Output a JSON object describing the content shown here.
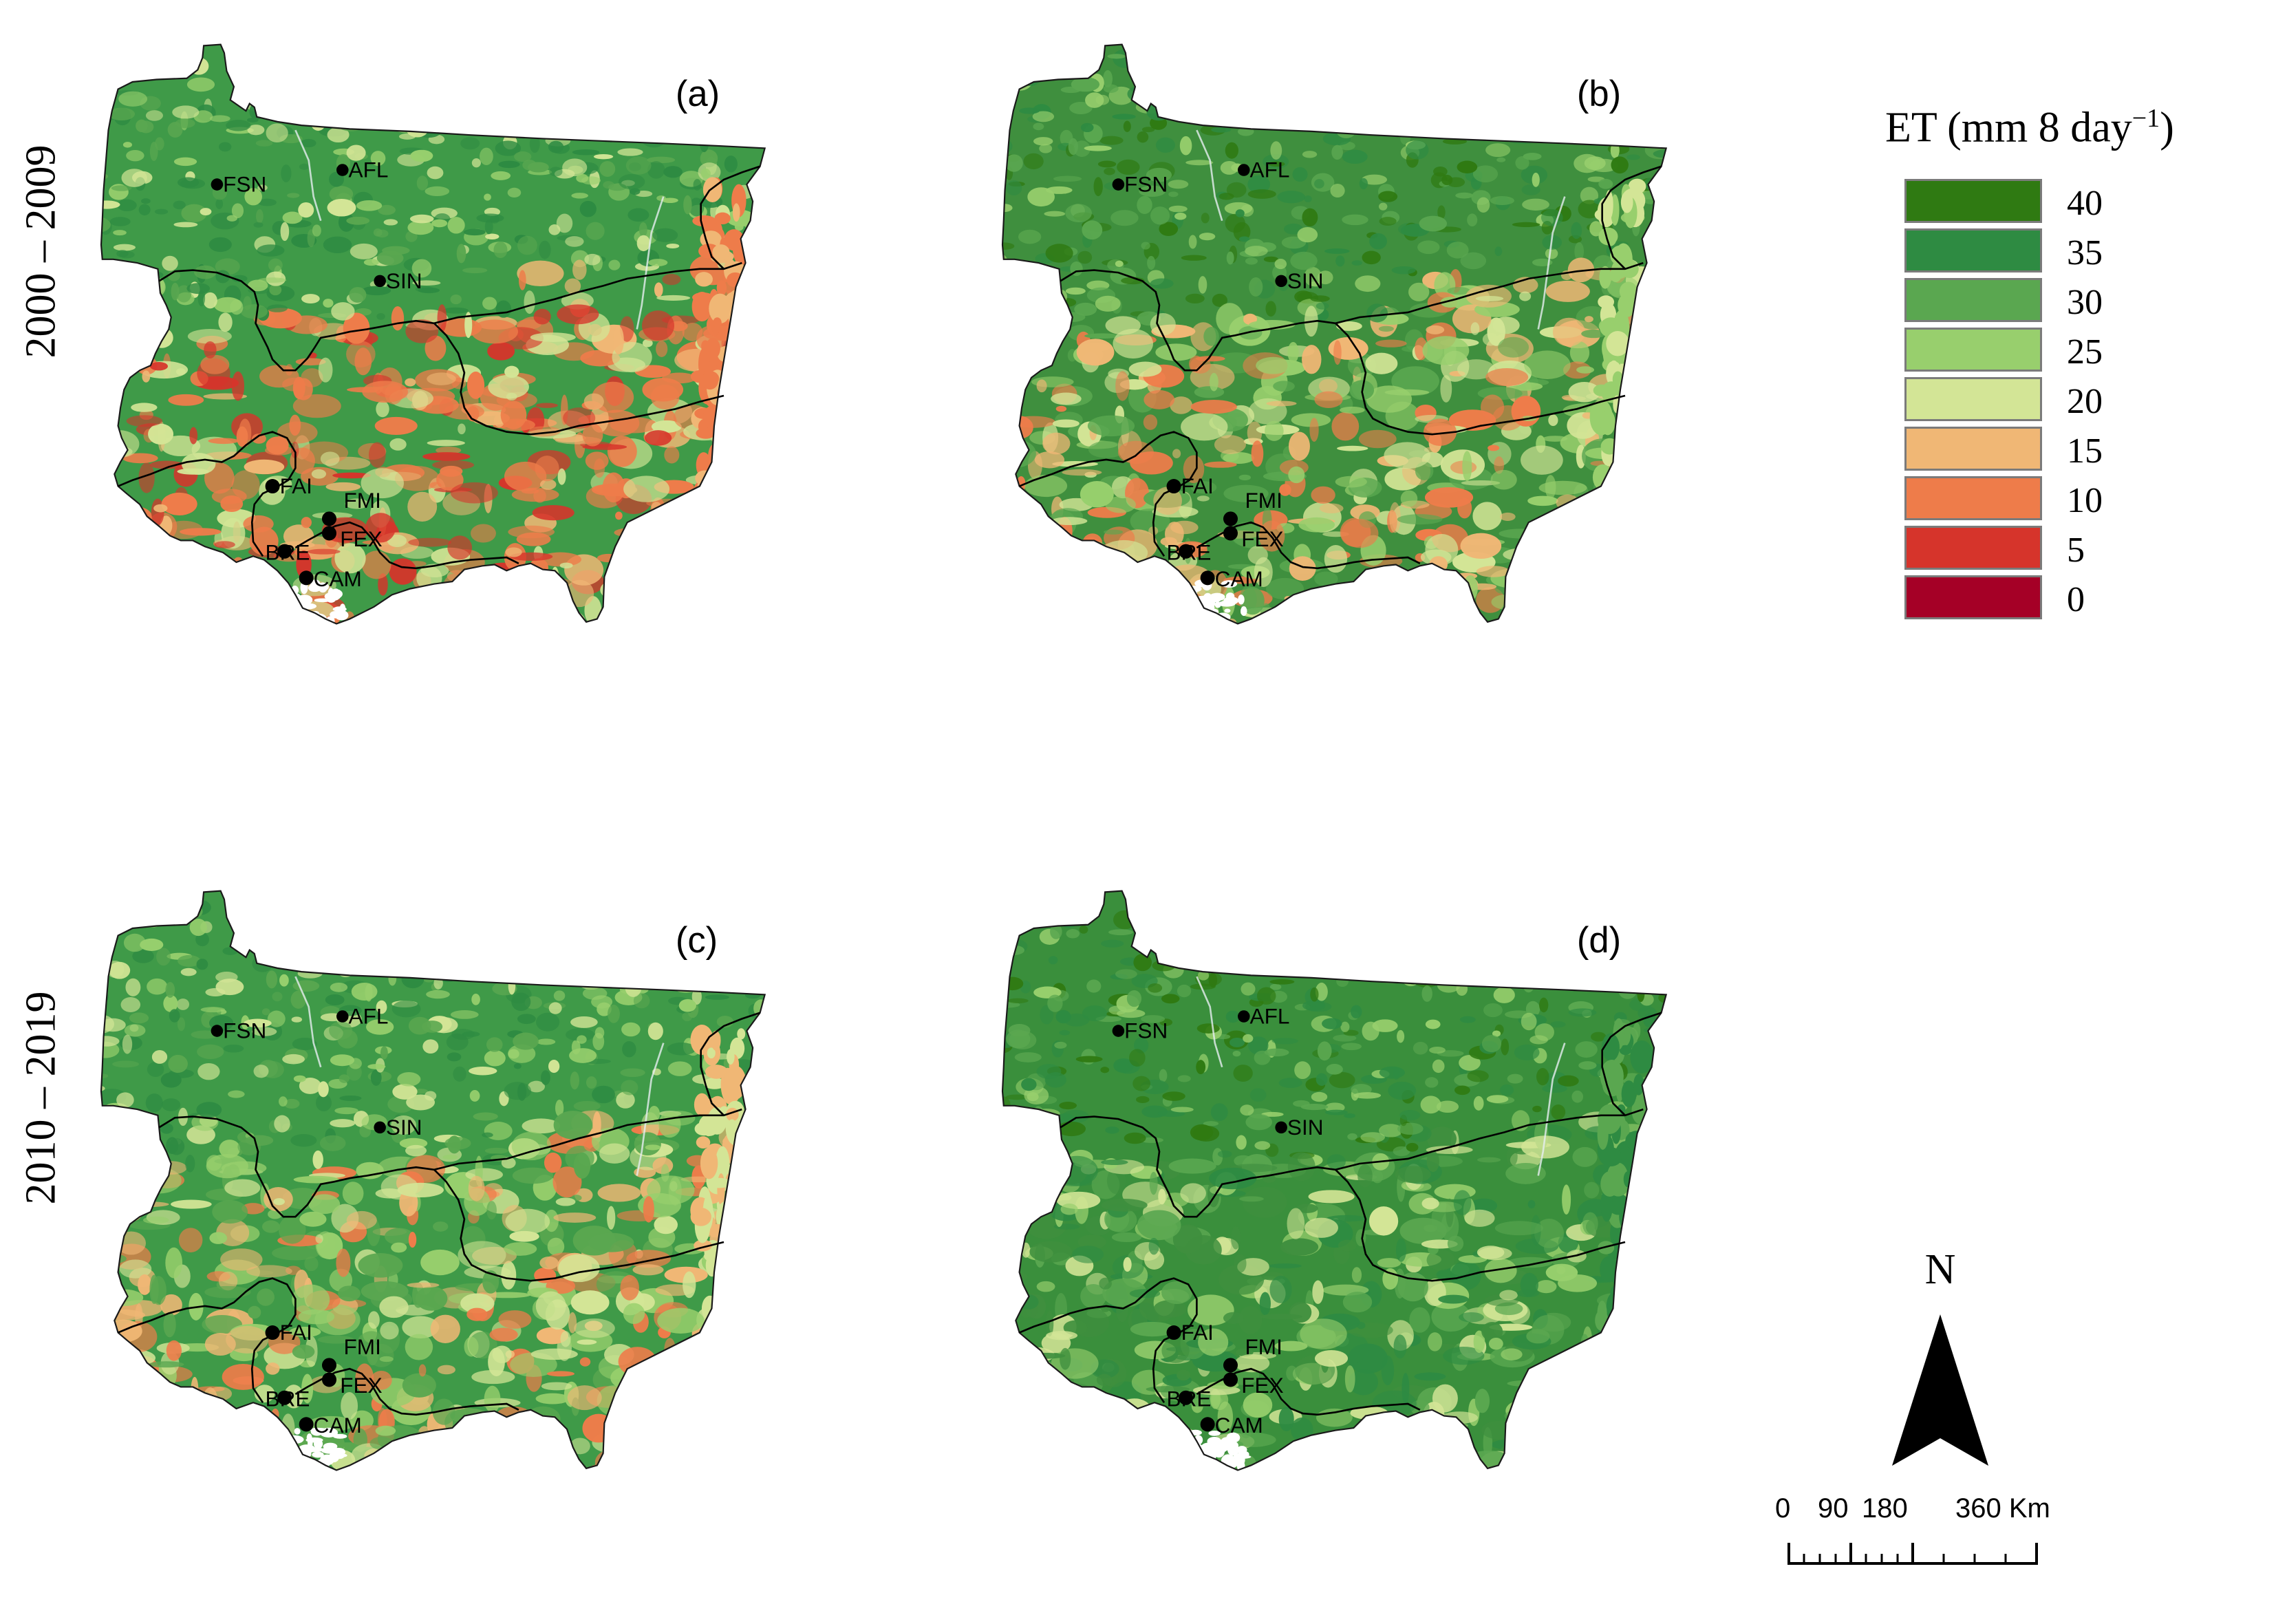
{
  "rows": [
    "2000 – 2009",
    "2010 – 2019"
  ],
  "panels": [
    {
      "label": "(a)",
      "scheme": "dry"
    },
    {
      "label": "(b)",
      "scheme": "wet"
    },
    {
      "label": "(c)",
      "scheme": "mid"
    },
    {
      "label": "(d)",
      "scheme": "green"
    }
  ],
  "sites": [
    "FSN",
    "AFL",
    "SIN",
    "FAI",
    "FMI",
    "FEX",
    "BRE",
    "CAM"
  ],
  "legend": {
    "title_main": "ET (mm 8 day",
    "title_sup": "−1",
    "title_end": ")",
    "entries": [
      {
        "value": "40",
        "color": "#2f7a12"
      },
      {
        "value": "35",
        "color": "#2e8b42"
      },
      {
        "value": "30",
        "color": "#5aa750"
      },
      {
        "value": "25",
        "color": "#98cf6d"
      },
      {
        "value": "20",
        "color": "#d3e596"
      },
      {
        "value": "15",
        "color": "#f0b775"
      },
      {
        "value": "10",
        "color": "#ee7c4a"
      },
      {
        "value": "5",
        "color": "#d6342b"
      },
      {
        "value": "0",
        "color": "#a50026"
      }
    ]
  },
  "north": {
    "label": "N"
  },
  "scalebar": {
    "ticks": [
      "0",
      "90",
      "180",
      "360 Km"
    ]
  }
}
